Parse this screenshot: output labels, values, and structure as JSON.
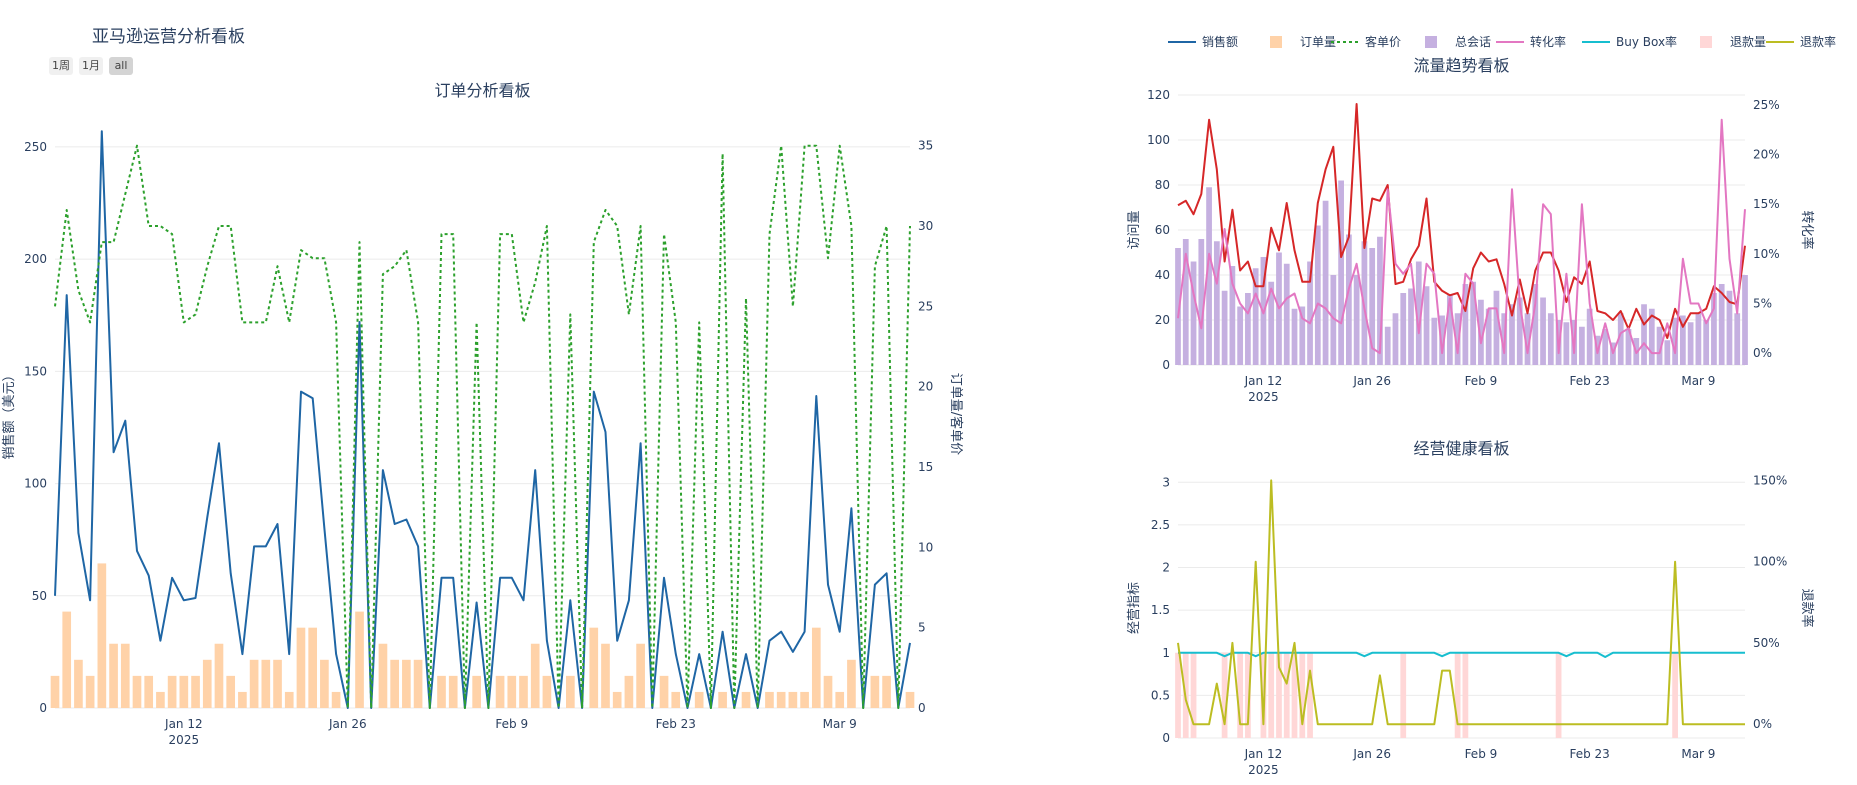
{
  "dashboard": {
    "title": "亚马逊运营分析看板"
  },
  "range_buttons": [
    {
      "label": "1周",
      "active": false
    },
    {
      "label": "1月",
      "active": false
    },
    {
      "label": "all",
      "active": true
    }
  ],
  "legend": [
    {
      "label": "销售额",
      "kind": "line",
      "color": "#1f66a5"
    },
    {
      "label": "订单量",
      "kind": "bar",
      "color": "#ffd2a8"
    },
    {
      "label": "客单价",
      "kind": "dotted",
      "color": "#2ca02c"
    },
    {
      "label": "总会话",
      "kind": "bar",
      "color": "#c5b0e0"
    },
    {
      "label": "转化率",
      "kind": "line",
      "color": "#e377c2"
    },
    {
      "label": "Buy Box率",
      "kind": "line",
      "color": "#17becf"
    },
    {
      "label": "退款量",
      "kind": "bar",
      "color": "#ffd7d7"
    },
    {
      "label": "退款率",
      "kind": "line",
      "color": "#bcbd22"
    }
  ],
  "colors": {
    "sales": "#1f66a5",
    "orders": "#ffd2a8",
    "aov": "#2ca02c",
    "sessions": "#c5b0e0",
    "pageviews": "#d62728",
    "conversion": "#e377c2",
    "buybox": "#17becf",
    "refund_qty": "#ffd7d7",
    "refund_rate": "#bcbd22",
    "axis_text": "#2a3f5f",
    "grid": "#ebebeb"
  },
  "chart_data": [
    {
      "id": "orders",
      "title": "订单分析看板",
      "type": "bar+line",
      "x_start": "2025-01-01",
      "x_tick_labels": [
        "Jan 12",
        "Jan 26",
        "Feb 9",
        "Feb 23",
        "Mar 9"
      ],
      "x_year_label": "2025",
      "ylabel": "销售额（美元）",
      "ylabel2": "订单量/客单价",
      "ylim": [
        0,
        262
      ],
      "ylim2": [
        0,
        36.6
      ],
      "yticks": [
        "0",
        "50",
        "100",
        "150",
        "200",
        "250"
      ],
      "yticks2": [
        "0",
        "5",
        "10",
        "15",
        "20",
        "25",
        "30",
        "35"
      ],
      "series": [
        {
          "name": "销售额",
          "kind": "line",
          "axis": "y",
          "values": [
            50,
            184,
            78,
            48,
            257,
            114,
            128,
            70,
            59,
            30,
            58,
            48,
            49,
            85,
            118,
            60,
            24,
            72,
            72,
            82,
            24,
            141,
            138,
            80,
            24,
            0,
            172,
            0,
            106,
            82,
            84,
            72,
            0,
            58,
            58,
            0,
            47,
            0,
            58,
            58,
            48,
            106,
            30,
            0,
            48,
            0,
            141,
            123,
            30,
            48,
            118,
            0,
            58,
            24,
            0,
            24,
            0,
            34,
            0,
            24,
            0,
            30,
            34,
            25,
            34,
            139,
            55,
            34,
            89,
            0,
            55,
            60,
            0,
            29
          ]
        },
        {
          "name": "订单量",
          "kind": "bar",
          "axis": "y2",
          "values": [
            2,
            6,
            3,
            2,
            9,
            4,
            4,
            2,
            2,
            1,
            2,
            2,
            2,
            3,
            4,
            2,
            1,
            3,
            3,
            3,
            1,
            5,
            5,
            3,
            1,
            0,
            6,
            0,
            4,
            3,
            3,
            3,
            0,
            2,
            2,
            0,
            2,
            0,
            2,
            2,
            2,
            4,
            2,
            0,
            2,
            0,
            5,
            4,
            1,
            2,
            4,
            0,
            2,
            1,
            0,
            1,
            0,
            1,
            0,
            1,
            0,
            1,
            1,
            1,
            1,
            5,
            2,
            1,
            3,
            0,
            2,
            2,
            0,
            1
          ]
        },
        {
          "name": "客单价",
          "kind": "dotted",
          "axis": "y2",
          "values": [
            25,
            31,
            26,
            24,
            29,
            29,
            32,
            35,
            30,
            30,
            29.5,
            24,
            24.5,
            27.5,
            30,
            30,
            24,
            24,
            24,
            27.5,
            24,
            28.5,
            28,
            28,
            24,
            0,
            29,
            0,
            27,
            27.5,
            28.5,
            24,
            0,
            29.5,
            29.5,
            0,
            24,
            0,
            29.5,
            29.5,
            24,
            26.5,
            30,
            0,
            24.5,
            0,
            29,
            31,
            30,
            24.5,
            30,
            0,
            29.5,
            24,
            0,
            24,
            0,
            34.5,
            0,
            25.5,
            0,
            29.5,
            35,
            25,
            35,
            35,
            28,
            35,
            30,
            0,
            27.5,
            30,
            0,
            30
          ]
        }
      ]
    },
    {
      "id": "traffic",
      "title": "流量趋势看板",
      "type": "bar+line",
      "x_start": "2025-01-01",
      "x_tick_labels": [
        "Jan 12",
        "Jan 26",
        "Feb 9",
        "Feb 23",
        "Mar 9"
      ],
      "x_year_label": "2025",
      "ylabel": "访问量",
      "ylabel2": "转化率",
      "ylim": [
        0,
        120
      ],
      "ylim2": [
        -1.2,
        26
      ],
      "yticks": [
        "0",
        "20",
        "40",
        "60",
        "80",
        "100",
        "120"
      ],
      "yticks2": [
        "0%",
        "5%",
        "10%",
        "15%",
        "20%",
        "25%"
      ],
      "series": [
        {
          "name": "总会话",
          "kind": "bar",
          "axis": "y",
          "values": [
            52,
            56,
            46,
            56,
            79,
            55,
            33,
            44,
            26,
            32,
            43,
            48,
            37,
            50,
            45,
            25,
            26,
            46,
            62,
            73,
            40,
            82,
            58,
            40,
            55,
            52,
            57,
            17,
            23,
            32,
            34,
            46,
            35,
            21,
            22,
            31,
            23,
            36,
            37,
            29,
            25,
            33,
            23,
            27,
            30,
            23,
            36,
            30,
            23,
            20,
            19,
            20,
            17,
            25,
            13,
            16,
            10,
            23,
            16,
            12,
            27,
            25,
            17,
            11,
            21,
            22,
            19,
            23,
            20,
            32,
            36,
            33,
            23,
            40
          ]
        },
        {
          "name": "访问量",
          "kind": "line",
          "axis": "y",
          "color_key": "pageviews",
          "values": [
            71,
            73,
            67,
            76,
            109,
            87,
            46,
            69,
            42,
            46,
            35,
            35,
            61,
            51,
            72,
            51,
            37,
            37,
            72,
            87,
            97,
            48,
            57,
            116,
            52,
            74,
            73,
            80,
            36,
            37,
            47,
            53,
            74,
            37,
            33,
            31,
            32,
            24,
            43,
            50,
            46,
            47,
            36,
            22,
            38,
            23,
            42,
            50,
            50,
            42,
            28,
            39,
            36,
            46,
            24,
            23,
            20,
            24,
            16,
            25,
            18,
            22,
            20,
            12,
            25,
            17,
            23,
            23,
            25,
            35,
            32,
            28,
            27,
            53
          ]
        },
        {
          "name": "转化率",
          "kind": "line",
          "axis": "y2",
          "values": [
            3.5,
            10,
            6,
            2.5,
            10,
            7,
            12.5,
            7,
            5,
            4,
            6,
            4,
            6.5,
            4.5,
            5.5,
            6,
            3.5,
            3,
            5,
            4.5,
            3.5,
            3,
            6.5,
            9,
            4.5,
            0.5,
            0,
            16.5,
            9,
            8,
            9,
            2,
            9,
            8,
            0,
            5.5,
            0,
            8,
            7,
            1,
            4.5,
            4.5,
            0,
            16.5,
            5,
            0,
            5,
            15,
            14,
            0,
            8,
            0,
            15,
            5,
            0,
            3,
            0,
            2,
            2.5,
            0,
            1,
            0,
            0,
            3,
            0,
            9.5,
            5,
            5,
            3,
            4.5,
            23.5,
            9.5,
            4,
            14.5
          ]
        }
      ]
    },
    {
      "id": "health",
      "title": "经营健康看板",
      "type": "bar+line",
      "x_start": "2025-01-01",
      "x_tick_labels": [
        "Jan 12",
        "Jan 26",
        "Feb 9",
        "Feb 23",
        "Mar 9"
      ],
      "x_year_label": "2025",
      "ylabel": "经营指标",
      "ylabel2": "退款率",
      "ylim": [
        0,
        3.05
      ],
      "ylim2": [
        -8.5,
        151.5
      ],
      "yticks": [
        "0",
        "0.5",
        "1",
        "1.5",
        "2",
        "2.5",
        "3"
      ],
      "yticks2": [
        "0%",
        "50%",
        "100%",
        "150%"
      ],
      "series": [
        {
          "name": "退款量",
          "kind": "bar",
          "axis": "y",
          "values": [
            1,
            1,
            1,
            0,
            0,
            0,
            1,
            0,
            1,
            1,
            0,
            1,
            1,
            1,
            1,
            1,
            1,
            1,
            0,
            0,
            0,
            0,
            0,
            0,
            0,
            0,
            0,
            0,
            0,
            1,
            0,
            0,
            0,
            0,
            0,
            0,
            1,
            1,
            0,
            0,
            0,
            0,
            0,
            0,
            0,
            0,
            0,
            0,
            0,
            1,
            0,
            0,
            0,
            0,
            0,
            0,
            0,
            0,
            0,
            0,
            0,
            0,
            0,
            0,
            1,
            0,
            0,
            0,
            0,
            0,
            0,
            0,
            0,
            0
          ]
        },
        {
          "name": "Buy Box率",
          "kind": "line",
          "axis": "y",
          "values": [
            1,
            1,
            1,
            1,
            1,
            1,
            0.96,
            1,
            1,
            1,
            0.96,
            1,
            1,
            1,
            1,
            1,
            1,
            1,
            1,
            1,
            1,
            1,
            1,
            1,
            0.96,
            1,
            1,
            1,
            1,
            1,
            1,
            1,
            1,
            1,
            0.96,
            1,
            1,
            1,
            1,
            1,
            1,
            1,
            1,
            1,
            1,
            1,
            1,
            1,
            1,
            1,
            0.96,
            1,
            1,
            1,
            1,
            0.95,
            1,
            1,
            1,
            1,
            1,
            1,
            1,
            1,
            1,
            1,
            1,
            1,
            1,
            1,
            1,
            1,
            1,
            1
          ]
        },
        {
          "name": "退款率",
          "kind": "line",
          "axis": "y2",
          "values": [
            50,
            15,
            0,
            0,
            0,
            25,
            0,
            50,
            0,
            0,
            100,
            0,
            150,
            35,
            25,
            50,
            0,
            33,
            0,
            0,
            0,
            0,
            0,
            0,
            0,
            0,
            30,
            0,
            0,
            0,
            0,
            0,
            0,
            0,
            33,
            33,
            0,
            0,
            0,
            0,
            0,
            0,
            0,
            0,
            0,
            0,
            0,
            0,
            0,
            0,
            0,
            0,
            0,
            0,
            0,
            0,
            0,
            0,
            0,
            0,
            0,
            0,
            0,
            0,
            100,
            0,
            0,
            0,
            0,
            0,
            0,
            0,
            0,
            0
          ]
        }
      ]
    }
  ]
}
